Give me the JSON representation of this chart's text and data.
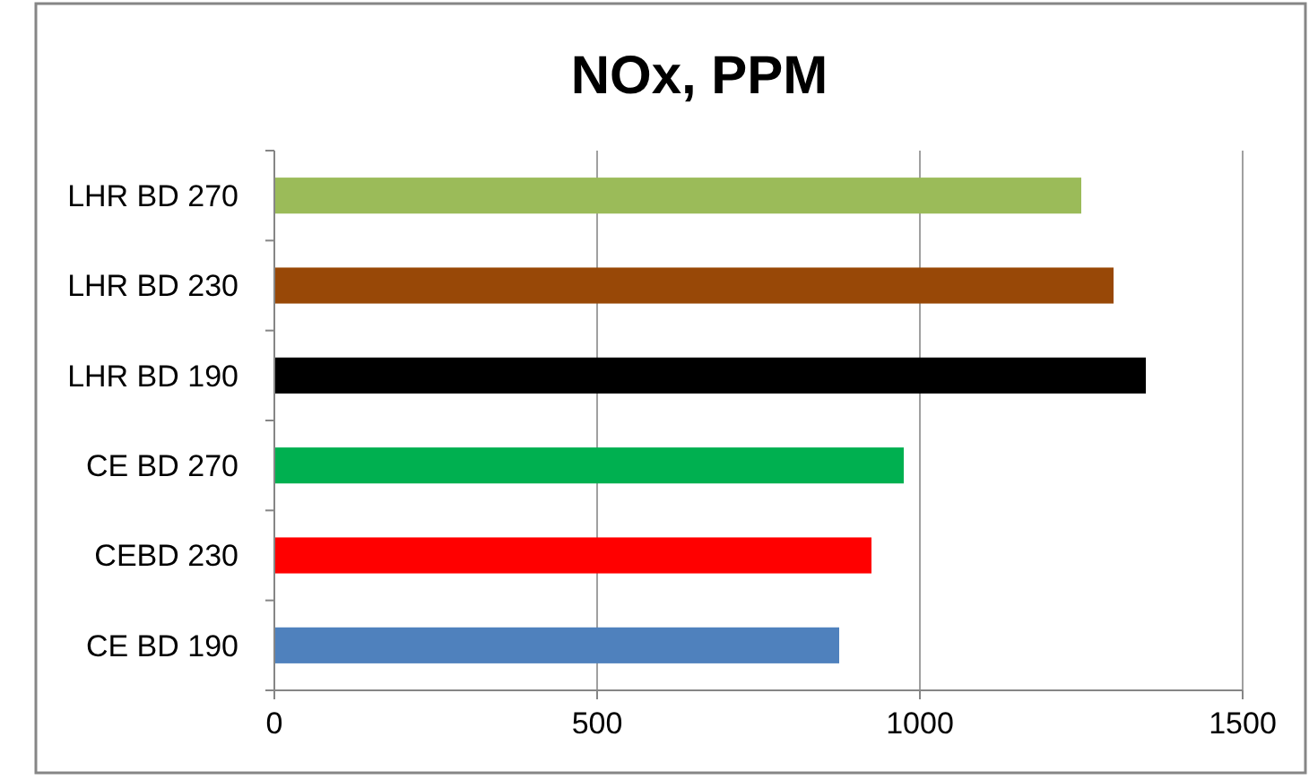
{
  "chart_data": {
    "type": "bar",
    "orientation": "horizontal",
    "title": "NOx, PPM",
    "categories": [
      "LHR BD 270",
      "LHR BD 230",
      "LHR BD 190",
      "CE BD 270",
      "CEBD 230",
      "CE BD 190"
    ],
    "values": [
      1250,
      1300,
      1350,
      975,
      925,
      875
    ],
    "colors": [
      "#9bbb59",
      "#984807",
      "#000000",
      "#00b050",
      "#ff0000",
      "#4f81bd"
    ],
    "xlim": [
      0,
      1500
    ],
    "xticks": [
      0,
      500,
      1000,
      1500
    ],
    "grid": "x"
  }
}
